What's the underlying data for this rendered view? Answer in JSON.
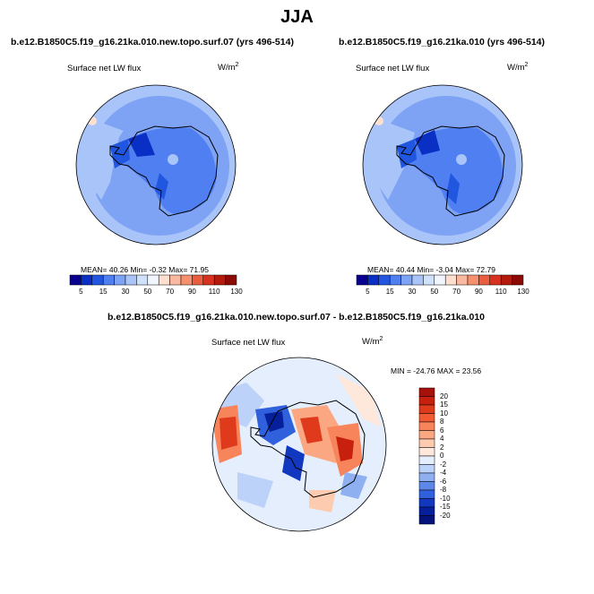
{
  "title": "JJA",
  "panels": [
    {
      "run": "b.e12.B1850C5.f19_g16.21ka.010.new.topo.surf.07 (yrs 496-514)",
      "variable": "Surface net LW flux",
      "unit_base": "W/m",
      "unit_exp": "2",
      "stats": "MEAN=  40.26  Min=  -0.32  Max=  71.95"
    },
    {
      "run": "b.e12.B1850C5.f19_g16.21ka.010 (yrs 496-514)",
      "variable": "Surface net LW flux",
      "unit_base": "W/m",
      "unit_exp": "2",
      "stats": "MEAN=  40.44  Min=  -3.04  Max=  72.79"
    }
  ],
  "diff_panel": {
    "run": "b.e12.B1850C5.f19_g16.21ka.010.new.topo.surf.07 - b.e12.B1850C5.f19_g16.21ka.010",
    "variable": "Surface net LW flux",
    "unit_base": "W/m",
    "unit_exp": "2",
    "stats": "MIN = -24.76 MAX =  23.56"
  },
  "abs_colorbar": {
    "labels": [
      "5",
      "15",
      "30",
      "50",
      "70",
      "90",
      "110",
      "130"
    ],
    "colors": [
      "#08008f",
      "#0a2fc4",
      "#2157e0",
      "#4f7ff0",
      "#7ea3f5",
      "#a9c4f8",
      "#d0e1fb",
      "#f0f5fe",
      "#fde0d0",
      "#fbb8a0",
      "#f6906e",
      "#ea5e3f",
      "#d8321e",
      "#b31b0f",
      "#8c0a05"
    ]
  },
  "diff_colorbar": {
    "labels": [
      "20",
      "15",
      "10",
      "8",
      "6",
      "4",
      "2",
      "0",
      "-2",
      "-4",
      "-6",
      "-8",
      "-10",
      "-15",
      "-20"
    ],
    "colors": [
      "#a8110a",
      "#c8200f",
      "#e03a1c",
      "#f25a33",
      "#f7845a",
      "#fba882",
      "#fdcbb0",
      "#fee8dc",
      "#e4eefc",
      "#bcd2f8",
      "#8eb0f1",
      "#5e88e8",
      "#3060dc",
      "#1238c0",
      "#061f9a",
      "#04127a"
    ]
  }
}
